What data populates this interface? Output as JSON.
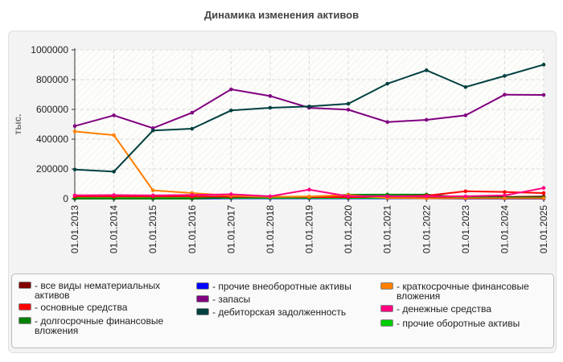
{
  "chart_data": {
    "type": "line",
    "title": "Динамика изменения активов",
    "ylabel": "тыс.",
    "xlabel": "",
    "ylim": [
      0,
      1000000
    ],
    "yticks": [
      "0",
      "200000",
      "400000",
      "600000",
      "800000",
      "1000000"
    ],
    "ytick_values": [
      0,
      200000,
      400000,
      600000,
      800000,
      1000000
    ],
    "grid": true,
    "legend_position": "bottom",
    "categories": [
      "01.01.2013",
      "01.01.2014",
      "01.01.2015",
      "01.01.2016",
      "01.01.2017",
      "01.01.2018",
      "01.01.2019",
      "01.01.2020",
      "01.01.2021",
      "01.01.2022",
      "01.01.2023",
      "01.01.2024",
      "01.01.2025"
    ],
    "series": [
      {
        "name": "- все виды нематериальных активов",
        "color": "#800000",
        "values": [
          0,
          0,
          0,
          0,
          10000,
          10000,
          10000,
          12000,
          12000,
          12000,
          12000,
          12000,
          15000
        ]
      },
      {
        "name": "- основные средства",
        "color": "#ff0000",
        "values": [
          15000,
          15000,
          15000,
          15000,
          14000,
          14000,
          12000,
          10000,
          14000,
          20000,
          50000,
          45000,
          38000
        ]
      },
      {
        "name": "- долгосрочные финансовые вложения",
        "color": "#008000",
        "values": [
          0,
          0,
          0,
          0,
          10000,
          10000,
          10000,
          27000,
          28000,
          28000,
          8000,
          8000,
          8000
        ]
      },
      {
        "name": "- прочие внеоборотные активы",
        "color": "#0000ff",
        "values": [
          0,
          0,
          0,
          0,
          2000,
          2000,
          2000,
          2000,
          2000,
          2000,
          0,
          0,
          0
        ]
      },
      {
        "name": "- запасы",
        "color": "#800080",
        "values": [
          488000,
          560000,
          474000,
          578000,
          735000,
          690000,
          611000,
          598000,
          515000,
          530000,
          560000,
          699000,
          697000
        ]
      },
      {
        "name": "- дебиторская задолженность",
        "color": "#004040",
        "values": [
          196000,
          182000,
          458000,
          470000,
          593000,
          611000,
          620000,
          638000,
          773000,
          863000,
          750000,
          825000,
          901000
        ]
      },
      {
        "name": "- краткосрочные финансовые вложения",
        "color": "#ff8000",
        "values": [
          452000,
          427000,
          56000,
          38000,
          20000,
          12000,
          15000,
          25000,
          5000,
          3000,
          3000,
          3000,
          3000
        ]
      },
      {
        "name": "- денежные средства",
        "color": "#ff0080",
        "values": [
          23000,
          24000,
          22000,
          25000,
          30000,
          16000,
          61000,
          16000,
          16000,
          16000,
          16000,
          22000,
          72000
        ]
      },
      {
        "name": "- прочие оборотные активы",
        "color": "#00cc00",
        "values": [
          5000,
          5000,
          5000,
          5000,
          5000,
          5000,
          5000,
          5000,
          5000,
          5000,
          5000,
          5000,
          5000
        ]
      }
    ]
  }
}
